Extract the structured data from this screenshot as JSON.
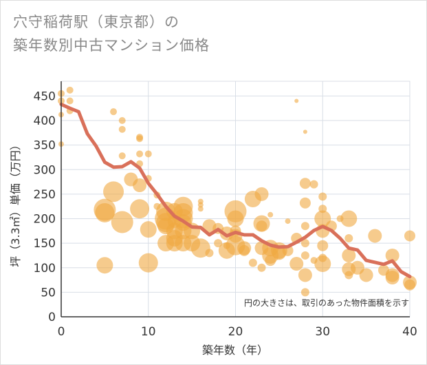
{
  "title_line1": "穴守稲荷駅（東京都）の",
  "title_line2": "築年数別中古マンション価格",
  "note": "円の大きさは、取引のあった物件面積を示す",
  "colors": {
    "bubble": "#f0a941",
    "line": "#d9705a",
    "grid": "#d8dee6",
    "axis": "#333333"
  },
  "chart_data": {
    "type": "scatter",
    "xlabel": "築年数（年）",
    "ylabel": "坪（3.3㎡）単価（万円）",
    "xlim": [
      0,
      40
    ],
    "ylim": [
      0,
      480
    ],
    "x_ticks": [
      0,
      10,
      20,
      30,
      40
    ],
    "y_ticks": [
      0,
      50,
      100,
      150,
      200,
      250,
      300,
      350,
      400,
      450
    ],
    "grid": true,
    "bubbles": [
      {
        "x": 0,
        "y": 455,
        "s": 5
      },
      {
        "x": 0,
        "y": 440,
        "s": 5
      },
      {
        "x": 0,
        "y": 412,
        "s": 4
      },
      {
        "x": 0,
        "y": 352,
        "s": 4
      },
      {
        "x": 1,
        "y": 462,
        "s": 5
      },
      {
        "x": 1,
        "y": 440,
        "s": 5
      },
      {
        "x": 1,
        "y": 420,
        "s": 5
      },
      {
        "x": 5,
        "y": 218,
        "s": 16
      },
      {
        "x": 5,
        "y": 212,
        "s": 14
      },
      {
        "x": 5,
        "y": 105,
        "s": 12
      },
      {
        "x": 6,
        "y": 418,
        "s": 5
      },
      {
        "x": 6,
        "y": 255,
        "s": 15
      },
      {
        "x": 7,
        "y": 400,
        "s": 5
      },
      {
        "x": 7,
        "y": 382,
        "s": 5
      },
      {
        "x": 7,
        "y": 328,
        "s": 5
      },
      {
        "x": 7,
        "y": 193,
        "s": 16
      },
      {
        "x": 8,
        "y": 280,
        "s": 10
      },
      {
        "x": 9,
        "y": 366,
        "s": 5
      },
      {
        "x": 9,
        "y": 363,
        "s": 5
      },
      {
        "x": 9,
        "y": 332,
        "s": 5
      },
      {
        "x": 9,
        "y": 312,
        "s": 5
      },
      {
        "x": 9,
        "y": 268,
        "s": 10
      },
      {
        "x": 9,
        "y": 220,
        "s": 14
      },
      {
        "x": 10,
        "y": 332,
        "s": 5
      },
      {
        "x": 10,
        "y": 282,
        "s": 5
      },
      {
        "x": 10,
        "y": 178,
        "s": 12
      },
      {
        "x": 10,
        "y": 110,
        "s": 14
      },
      {
        "x": 11,
        "y": 248,
        "s": 5
      },
      {
        "x": 11,
        "y": 225,
        "s": 5
      },
      {
        "x": 12,
        "y": 215,
        "s": 14
      },
      {
        "x": 12,
        "y": 200,
        "s": 16
      },
      {
        "x": 12,
        "y": 192,
        "s": 14
      },
      {
        "x": 12,
        "y": 185,
        "s": 12
      },
      {
        "x": 12,
        "y": 150,
        "s": 12
      },
      {
        "x": 13,
        "y": 215,
        "s": 12
      },
      {
        "x": 13,
        "y": 195,
        "s": 10
      },
      {
        "x": 13,
        "y": 175,
        "s": 12
      },
      {
        "x": 13,
        "y": 160,
        "s": 12
      },
      {
        "x": 13,
        "y": 150,
        "s": 12
      },
      {
        "x": 14,
        "y": 225,
        "s": 14
      },
      {
        "x": 14,
        "y": 212,
        "s": 14
      },
      {
        "x": 14,
        "y": 200,
        "s": 14
      },
      {
        "x": 14,
        "y": 192,
        "s": 12
      },
      {
        "x": 14,
        "y": 175,
        "s": 12
      },
      {
        "x": 14,
        "y": 150,
        "s": 12
      },
      {
        "x": 15,
        "y": 175,
        "s": 12
      },
      {
        "x": 15,
        "y": 150,
        "s": 12
      },
      {
        "x": 16,
        "y": 235,
        "s": 4
      },
      {
        "x": 16,
        "y": 228,
        "s": 4
      },
      {
        "x": 16,
        "y": 220,
        "s": 4
      },
      {
        "x": 16,
        "y": 140,
        "s": 14
      },
      {
        "x": 17,
        "y": 185,
        "s": 10
      },
      {
        "x": 17,
        "y": 130,
        "s": 6
      },
      {
        "x": 18,
        "y": 180,
        "s": 8
      },
      {
        "x": 18,
        "y": 150,
        "s": 6
      },
      {
        "x": 19,
        "y": 170,
        "s": 10
      },
      {
        "x": 19,
        "y": 145,
        "s": 5
      },
      {
        "x": 19,
        "y": 135,
        "s": 12
      },
      {
        "x": 20,
        "y": 215,
        "s": 16
      },
      {
        "x": 20,
        "y": 200,
        "s": 12
      },
      {
        "x": 20,
        "y": 175,
        "s": 8
      },
      {
        "x": 20,
        "y": 165,
        "s": 10
      },
      {
        "x": 20,
        "y": 145,
        "s": 14
      },
      {
        "x": 21,
        "y": 140,
        "s": 10
      },
      {
        "x": 21,
        "y": 135,
        "s": 8
      },
      {
        "x": 22,
        "y": 240,
        "s": 12
      },
      {
        "x": 22,
        "y": 110,
        "s": 6
      },
      {
        "x": 23,
        "y": 250,
        "s": 10
      },
      {
        "x": 23,
        "y": 190,
        "s": 12
      },
      {
        "x": 23,
        "y": 185,
        "s": 8
      },
      {
        "x": 23,
        "y": 140,
        "s": 10
      },
      {
        "x": 23,
        "y": 100,
        "s": 6
      },
      {
        "x": 24,
        "y": 208,
        "s": 4
      },
      {
        "x": 24,
        "y": 140,
        "s": 12
      },
      {
        "x": 24,
        "y": 125,
        "s": 12
      },
      {
        "x": 24,
        "y": 115,
        "s": 8
      },
      {
        "x": 25,
        "y": 135,
        "s": 12
      },
      {
        "x": 25,
        "y": 130,
        "s": 10
      },
      {
        "x": 26,
        "y": 195,
        "s": 4
      },
      {
        "x": 26,
        "y": 135,
        "s": 8
      },
      {
        "x": 27,
        "y": 440,
        "s": 3
      },
      {
        "x": 27,
        "y": 160,
        "s": 8
      },
      {
        "x": 27,
        "y": 108,
        "s": 10
      },
      {
        "x": 28,
        "y": 377,
        "s": 3
      },
      {
        "x": 28,
        "y": 272,
        "s": 8
      },
      {
        "x": 28,
        "y": 232,
        "s": 8
      },
      {
        "x": 28,
        "y": 185,
        "s": 6
      },
      {
        "x": 28,
        "y": 150,
        "s": 6
      },
      {
        "x": 28,
        "y": 125,
        "s": 6
      },
      {
        "x": 28,
        "y": 85,
        "s": 10
      },
      {
        "x": 28,
        "y": 50,
        "s": 6
      },
      {
        "x": 29,
        "y": 270,
        "s": 6
      },
      {
        "x": 29,
        "y": 115,
        "s": 5
      },
      {
        "x": 30,
        "y": 245,
        "s": 6
      },
      {
        "x": 30,
        "y": 220,
        "s": 6
      },
      {
        "x": 30,
        "y": 200,
        "s": 12
      },
      {
        "x": 30,
        "y": 175,
        "s": 10
      },
      {
        "x": 30,
        "y": 145,
        "s": 8
      },
      {
        "x": 30,
        "y": 120,
        "s": 6
      },
      {
        "x": 30,
        "y": 108,
        "s": 12
      },
      {
        "x": 31,
        "y": 185,
        "s": 8
      },
      {
        "x": 32,
        "y": 200,
        "s": 5
      },
      {
        "x": 33,
        "y": 200,
        "s": 12
      },
      {
        "x": 33,
        "y": 160,
        "s": 6
      },
      {
        "x": 33,
        "y": 125,
        "s": 10
      },
      {
        "x": 33,
        "y": 97,
        "s": 10
      },
      {
        "x": 33,
        "y": 85,
        "s": 6
      },
      {
        "x": 34,
        "y": 100,
        "s": 10
      },
      {
        "x": 35,
        "y": 85,
        "s": 10
      },
      {
        "x": 36,
        "y": 165,
        "s": 10
      },
      {
        "x": 37,
        "y": 95,
        "s": 8
      },
      {
        "x": 38,
        "y": 125,
        "s": 10
      },
      {
        "x": 38,
        "y": 85,
        "s": 10
      },
      {
        "x": 38,
        "y": 80,
        "s": 10
      },
      {
        "x": 40,
        "y": 165,
        "s": 8
      },
      {
        "x": 40,
        "y": 70,
        "s": 10
      },
      {
        "x": 40,
        "y": 65,
        "s": 8
      }
    ],
    "trend": {
      "x": [
        0,
        1,
        2,
        3,
        4,
        5,
        6,
        7,
        8,
        9,
        10,
        11,
        12,
        13,
        14,
        15,
        16,
        17,
        18,
        19,
        20,
        21,
        22,
        23,
        24,
        25,
        26,
        27,
        28,
        29,
        30,
        31,
        32,
        33,
        34,
        35,
        36,
        37,
        38,
        39,
        40
      ],
      "y": [
        433,
        425,
        418,
        373,
        348,
        315,
        305,
        306,
        316,
        303,
        272,
        250,
        225,
        205,
        195,
        183,
        182,
        167,
        178,
        165,
        172,
        167,
        167,
        155,
        146,
        142,
        143,
        152,
        162,
        176,
        184,
        176,
        160,
        140,
        136,
        115,
        111,
        107,
        114,
        92,
        82
      ]
    }
  }
}
